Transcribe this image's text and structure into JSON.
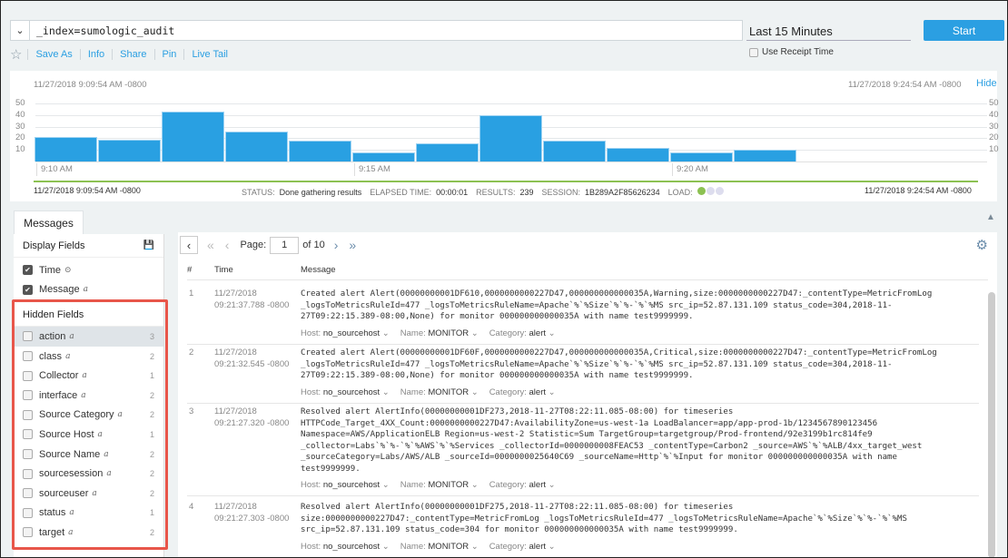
{
  "search": {
    "query": "_index=sumologic_audit",
    "time_range": "Last 15 Minutes",
    "start_label": "Start",
    "use_receipt_time": "Use Receipt Time"
  },
  "actions": [
    "Save As",
    "Info",
    "Share",
    "Pin",
    "Live Tail"
  ],
  "histogram": {
    "start_ts": "11/27/2018 9:09:54 AM -0800",
    "end_ts": "11/27/2018 9:24:54 AM -0800",
    "hide_label": "Hide"
  },
  "chart_data": {
    "type": "bar",
    "categories": [
      "9:10",
      "9:11",
      "9:12",
      "9:13",
      "9:14",
      "9:15",
      "9:16",
      "9:17",
      "9:18",
      "9:19",
      "9:20",
      "9:21"
    ],
    "values": [
      21,
      19,
      43,
      26,
      18,
      8,
      16,
      40,
      18,
      12,
      8,
      10
    ],
    "yticks": [
      10,
      20,
      30,
      40,
      50
    ],
    "ylim": [
      0,
      50
    ],
    "xticks": [
      "9:10 AM",
      "9:15 AM",
      "9:20 AM"
    ],
    "grid": true,
    "color": "#29a0e2"
  },
  "status": {
    "start_ts": "11/27/2018 9:09:54 AM -0800",
    "end_ts": "11/27/2018 9:24:54 AM -0800",
    "status_label": "STATUS:",
    "status": "Done gathering results",
    "elapsed_label": "ELAPSED TIME:",
    "elapsed": "00:00:01",
    "results_label": "RESULTS:",
    "results": "239",
    "session_label": "SESSION:",
    "session": "1B289A2F85626234",
    "load_label": "LOAD:",
    "progress_color": "#8cc152"
  },
  "tab": "Messages",
  "display_fields": {
    "title": "Display Fields",
    "items": [
      {
        "name": "Time",
        "type": "⊙"
      },
      {
        "name": "Message",
        "type": "a"
      }
    ]
  },
  "hidden_fields": {
    "title": "Hidden Fields",
    "items": [
      {
        "name": "action",
        "type": "a",
        "count": "3"
      },
      {
        "name": "class",
        "type": "a",
        "count": "2"
      },
      {
        "name": "Collector",
        "type": "a",
        "count": "1"
      },
      {
        "name": "interface",
        "type": "a",
        "count": "2"
      },
      {
        "name": "Source Category",
        "type": "a",
        "count": "2"
      },
      {
        "name": "Source Host",
        "type": "a",
        "count": "1"
      },
      {
        "name": "Source Name",
        "type": "a",
        "count": "2"
      },
      {
        "name": "sourcesession",
        "type": "a",
        "count": "2"
      },
      {
        "name": "sourceuser",
        "type": "a",
        "count": "2"
      },
      {
        "name": "status",
        "type": "a",
        "count": "1"
      },
      {
        "name": "target",
        "type": "a",
        "count": "2"
      }
    ]
  },
  "pager": {
    "page_label": "Page:",
    "page": "1",
    "of": "of 10"
  },
  "columns": [
    "#",
    "Time",
    "Message"
  ],
  "messages": [
    {
      "n": "1",
      "date": "11/27/2018",
      "time": "09:21:37.788 -0800",
      "text": "Created alert Alert(00000000001DF610,0000000000227D47,000000000000035A,Warning,size:0000000000227D47:_contentType=MetricFromLog\n_logsToMetricsRuleId=477 _logsToMetricsRuleName=Apache`%`%Size`%`%-`%`%MS src_ip=52.87.131.109 status_code=304,2018-11-\n27T09:22:15.389-08:00,None) for monitor 000000000000035A with name test9999999.",
      "host": "no_sourcehost",
      "name": "MONITOR",
      "category": "alert"
    },
    {
      "n": "2",
      "date": "11/27/2018",
      "time": "09:21:32.545 -0800",
      "text": "Created alert Alert(00000000001DF60F,0000000000227D47,000000000000035A,Critical,size:0000000000227D47:_contentType=MetricFromLog\n_logsToMetricsRuleId=477 _logsToMetricsRuleName=Apache`%`%Size`%`%-`%`%MS src_ip=52.87.131.109 status_code=304,2018-11-\n27T09:22:15.389-08:00,None) for monitor 000000000000035A with name test9999999.",
      "host": "no_sourcehost",
      "name": "MONITOR",
      "category": "alert"
    },
    {
      "n": "3",
      "date": "11/27/2018",
      "time": "09:21:27.320 -0800",
      "text": "Resolved alert AlertInfo(00000000001DF273,2018-11-27T08:22:11.085-08:00) for timeseries\nHTTPCode_Target_4XX_Count:0000000000227D47:AvailabilityZone=us-west-1a LoadBalancer=app/app-prod-1b/1234567890123456\nNamespace=AWS/ApplicationELB Region=us-west-2 Statistic=Sum TargetGroup=targetgroup/Prod-frontend/92e3199b1rc814fe9\n_collector=Labs`%`%-`%`%AWS`%`%Services _collectorId=0000000008FEAC53 _contentType=Carbon2 _source=AWS`%`%ALB/4xx_target_west\n_sourceCategory=Labs/AWS/ALB _sourceId=0000000025640C69 _sourceName=Http`%`%Input for monitor 000000000000035A with name\ntest9999999.",
      "host": "no_sourcehost",
      "name": "MONITOR",
      "category": "alert"
    },
    {
      "n": "4",
      "date": "11/27/2018",
      "time": "09:21:27.303 -0800",
      "text": "Resolved alert AlertInfo(00000000001DF275,2018-11-27T08:22:11.085-08:00) for timeseries\nsize:0000000000227D47:_contentType=MetricFromLog _logsToMetricsRuleId=477 _logsToMetricsRuleName=Apache`%`%Size`%`%-`%`%MS\nsrc_ip=52.87.131.109 status_code=304 for monitor 000000000000035A with name test9999999.",
      "host": "no_sourcehost",
      "name": "MONITOR",
      "category": "alert"
    }
  ],
  "meta_labels": {
    "host": "Host:",
    "name": "Name:",
    "category": "Category:"
  }
}
